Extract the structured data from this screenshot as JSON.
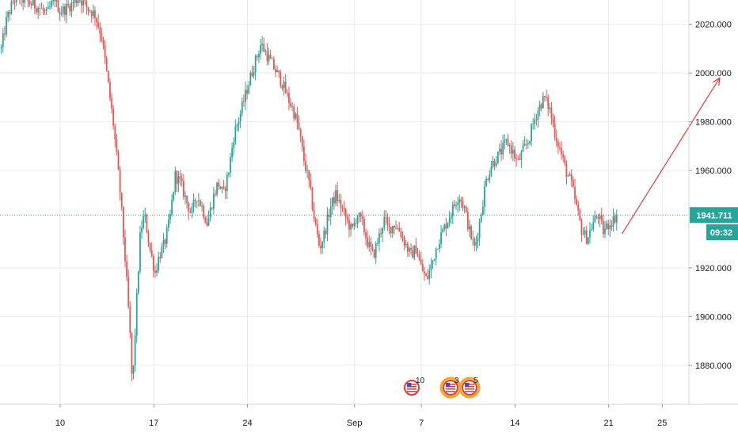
{
  "chart_data": {
    "type": "candlestick",
    "y_axis": {
      "ticks": [
        "2020.000",
        "2000.000",
        "1980.000",
        "1960.000",
        "1920.000",
        "1900.000",
        "1880.000"
      ],
      "tick_values": [
        2020,
        2000,
        1980,
        1960,
        1920,
        1900,
        1880
      ],
      "range": [
        1864,
        2030
      ]
    },
    "x_axis": {
      "ticks": [
        "10",
        "17",
        "24",
        "Sep",
        "7",
        "14",
        "21",
        "25"
      ],
      "tick_values": [
        10,
        17,
        24,
        32,
        37,
        44,
        51,
        55
      ],
      "range": [
        5.5,
        57
      ]
    },
    "current_price": "1941.711",
    "current_price_value": 1941.7,
    "countdown": "09:32",
    "close_path": [
      [
        5.6,
        2010
      ],
      [
        6.0,
        2022
      ],
      [
        6.5,
        2030
      ],
      [
        7.0,
        2031
      ],
      [
        7.6,
        2029
      ],
      [
        8.4,
        2027
      ],
      [
        9.0,
        2024
      ],
      [
        9.6,
        2031
      ],
      [
        10.0,
        2025
      ],
      [
        10.8,
        2028
      ],
      [
        11.4,
        2031
      ],
      [
        12.0,
        2027
      ],
      [
        12.6,
        2024
      ],
      [
        13.1,
        2015
      ],
      [
        13.6,
        1995
      ],
      [
        14.0,
        1978
      ],
      [
        14.5,
        1950
      ],
      [
        14.9,
        1920
      ],
      [
        15.2,
        1895
      ],
      [
        15.4,
        1870
      ],
      [
        15.7,
        1905
      ],
      [
        16.0,
        1935
      ],
      [
        16.3,
        1942
      ],
      [
        16.7,
        1928
      ],
      [
        17.1,
        1918
      ],
      [
        17.4,
        1925
      ],
      [
        17.8,
        1930
      ],
      [
        18.2,
        1940
      ],
      [
        18.6,
        1958
      ],
      [
        19.0,
        1955
      ],
      [
        19.4,
        1948
      ],
      [
        19.8,
        1942
      ],
      [
        20.2,
        1950
      ],
      [
        20.6,
        1945
      ],
      [
        21.0,
        1938
      ],
      [
        21.4,
        1948
      ],
      [
        21.8,
        1955
      ],
      [
        22.2,
        1950
      ],
      [
        22.6,
        1960
      ],
      [
        23.0,
        1975
      ],
      [
        23.4,
        1982
      ],
      [
        23.8,
        1990
      ],
      [
        24.2,
        1998
      ],
      [
        24.6,
        2005
      ],
      [
        25.0,
        2012
      ],
      [
        25.4,
        2008
      ],
      [
        25.8,
        2004
      ],
      [
        26.2,
        2000
      ],
      [
        26.6,
        1996
      ],
      [
        27.0,
        1990
      ],
      [
        27.4,
        1985
      ],
      [
        27.8,
        1978
      ],
      [
        28.2,
        1965
      ],
      [
        28.6,
        1955
      ],
      [
        29.0,
        1940
      ],
      [
        29.4,
        1928
      ],
      [
        29.8,
        1935
      ],
      [
        30.2,
        1945
      ],
      [
        30.6,
        1950
      ],
      [
        31.0,
        1945
      ],
      [
        31.4,
        1940
      ],
      [
        31.8,
        1935
      ],
      [
        32.2,
        1942
      ],
      [
        32.6,
        1938
      ],
      [
        33.0,
        1930
      ],
      [
        33.4,
        1925
      ],
      [
        33.8,
        1932
      ],
      [
        34.2,
        1940
      ],
      [
        34.6,
        1936
      ],
      [
        35.0,
        1938
      ],
      [
        35.4,
        1935
      ],
      [
        35.8,
        1930
      ],
      [
        36.2,
        1925
      ],
      [
        36.6,
        1928
      ],
      [
        37.0,
        1920
      ],
      [
        37.4,
        1915
      ],
      [
        37.8,
        1922
      ],
      [
        38.2,
        1930
      ],
      [
        38.6,
        1935
      ],
      [
        39.0,
        1940
      ],
      [
        39.4,
        1945
      ],
      [
        39.8,
        1950
      ],
      [
        40.2,
        1945
      ],
      [
        40.6,
        1935
      ],
      [
        41.0,
        1928
      ],
      [
        41.4,
        1940
      ],
      [
        41.8,
        1955
      ],
      [
        42.2,
        1962
      ],
      [
        42.6,
        1965
      ],
      [
        43.0,
        1968
      ],
      [
        43.4,
        1972
      ],
      [
        43.8,
        1968
      ],
      [
        44.2,
        1963
      ],
      [
        44.6,
        1968
      ],
      [
        45.0,
        1972
      ],
      [
        45.4,
        1980
      ],
      [
        45.8,
        1986
      ],
      [
        46.2,
        1990
      ],
      [
        46.6,
        1985
      ],
      [
        47.0,
        1975
      ],
      [
        47.4,
        1968
      ],
      [
        47.8,
        1960
      ],
      [
        48.2,
        1955
      ],
      [
        48.6,
        1945
      ],
      [
        49.0,
        1935
      ],
      [
        49.4,
        1932
      ],
      [
        49.8,
        1938
      ],
      [
        50.2,
        1942
      ],
      [
        50.6,
        1935
      ],
      [
        51.0,
        1938
      ],
      [
        51.4,
        1940
      ],
      [
        51.6,
        1942
      ]
    ],
    "arrow": {
      "from": [
        52.0,
        1934
      ],
      "to": [
        59.3,
        1998
      ]
    },
    "events": [
      {
        "label": "10"
      },
      {
        "label": "3"
      },
      {
        "label": "5"
      }
    ],
    "colors": {
      "up": "#26a69a",
      "down": "#ef5350",
      "grid": "#e7eaee",
      "price_tag": "#26a69a",
      "arrow": "#e53935",
      "event_ring": "#f5a623"
    }
  }
}
